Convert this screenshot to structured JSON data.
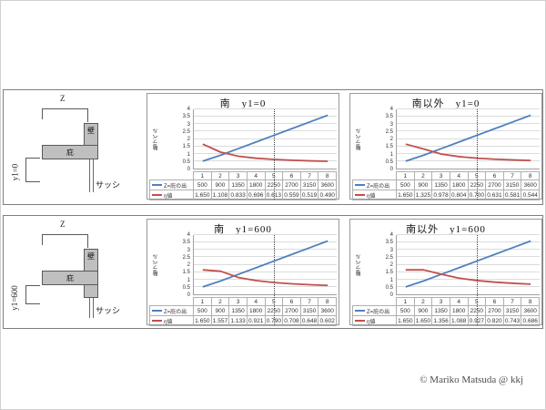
{
  "page": {
    "copyright": "© Mariko Matsuda @ kkj"
  },
  "colors": {
    "series_z_blue": "#4F81BD",
    "series_eta_red": "#C0504D",
    "gridline": "#DCDCDC",
    "axis": "#A0A0A0",
    "panel_border": "#7F7F7F",
    "diagram_fill": "#BFBFBF",
    "diagram_stroke": "#595959",
    "table_border": "#B0B0B0",
    "vline": "#404040"
  },
  "diagram": {
    "z_dim_label": "Z",
    "wall_label": "壁",
    "eaves_label": "庇",
    "sash_label": "サッシ"
  },
  "panels": [
    {
      "y1_label": "y1=0"
    },
    {
      "y1_label": "y1=600"
    }
  ],
  "chart_data": [
    {
      "type": "line",
      "title": "南　y1=0",
      "ylabel": "軸ラベル",
      "ylim": [
        0,
        4
      ],
      "ytick_step": 0.5,
      "grid": true,
      "legend_position": "table-left",
      "categories": [
        1,
        2,
        3,
        4,
        5,
        6,
        7,
        8
      ],
      "vline_after_category": 4,
      "series": [
        {
          "name": "Z=庇の出",
          "values": [
            500,
            900,
            1350,
            1800,
            2250,
            2700,
            3150,
            3600
          ],
          "plot_scale": 0.001,
          "format": "int",
          "color": "#4F81BD"
        },
        {
          "name": "η値",
          "values": [
            1.65,
            1.108,
            0.833,
            0.696,
            0.613,
            0.559,
            0.519,
            0.49
          ],
          "plot_scale": 1,
          "format": "3dp",
          "color": "#C0504D"
        }
      ]
    },
    {
      "type": "line",
      "title": "南以外　y1=0",
      "ylabel": "軸ラベル",
      "ylim": [
        0,
        4
      ],
      "ytick_step": 0.5,
      "grid": true,
      "legend_position": "table-left",
      "categories": [
        1,
        2,
        3,
        4,
        5,
        6,
        7,
        8
      ],
      "vline_after_category": 4,
      "series": [
        {
          "name": "Z=庇の出",
          "values": [
            500,
            900,
            1350,
            1800,
            2250,
            2700,
            3150,
            3600
          ],
          "plot_scale": 0.001,
          "format": "int",
          "color": "#4F81BD"
        },
        {
          "name": "η値",
          "values": [
            1.65,
            1.325,
            0.978,
            0.804,
            0.7,
            0.631,
            0.581,
            0.544
          ],
          "plot_scale": 1,
          "format": "3dp",
          "color": "#C0504D"
        }
      ]
    },
    {
      "type": "line",
      "title": "南　y1=600",
      "ylabel": "軸ラベル",
      "ylim": [
        0,
        4
      ],
      "ytick_step": 0.5,
      "grid": true,
      "legend_position": "table-left",
      "categories": [
        1,
        2,
        3,
        4,
        5,
        6,
        7,
        8
      ],
      "vline_after_category": 4,
      "series": [
        {
          "name": "Z=庇の出",
          "values": [
            500,
            900,
            1350,
            1800,
            2250,
            2700,
            3150,
            3600
          ],
          "plot_scale": 0.001,
          "format": "int",
          "color": "#4F81BD"
        },
        {
          "name": "η値",
          "values": [
            1.65,
            1.557,
            1.133,
            0.921,
            0.79,
            0.708,
            0.648,
            0.602
          ],
          "plot_scale": 1,
          "format": "3dp",
          "color": "#C0504D"
        }
      ]
    },
    {
      "type": "line",
      "title": "南以外　y1=600",
      "ylabel": "軸ラベル",
      "ylim": [
        0,
        4
      ],
      "ytick_step": 0.5,
      "grid": true,
      "legend_position": "table-left",
      "categories": [
        1,
        2,
        3,
        4,
        5,
        6,
        7,
        8
      ],
      "vline_after_category": 4,
      "series": [
        {
          "name": "Z=庇の出",
          "values": [
            500,
            900,
            1350,
            1800,
            2250,
            2700,
            3150,
            3600
          ],
          "plot_scale": 0.001,
          "format": "int",
          "color": "#4F81BD"
        },
        {
          "name": "η値",
          "values": [
            1.65,
            1.65,
            1.356,
            1.088,
            0.927,
            0.82,
            0.743,
            0.686
          ],
          "plot_scale": 1,
          "format": "3dp",
          "color": "#C0504D"
        }
      ]
    }
  ]
}
